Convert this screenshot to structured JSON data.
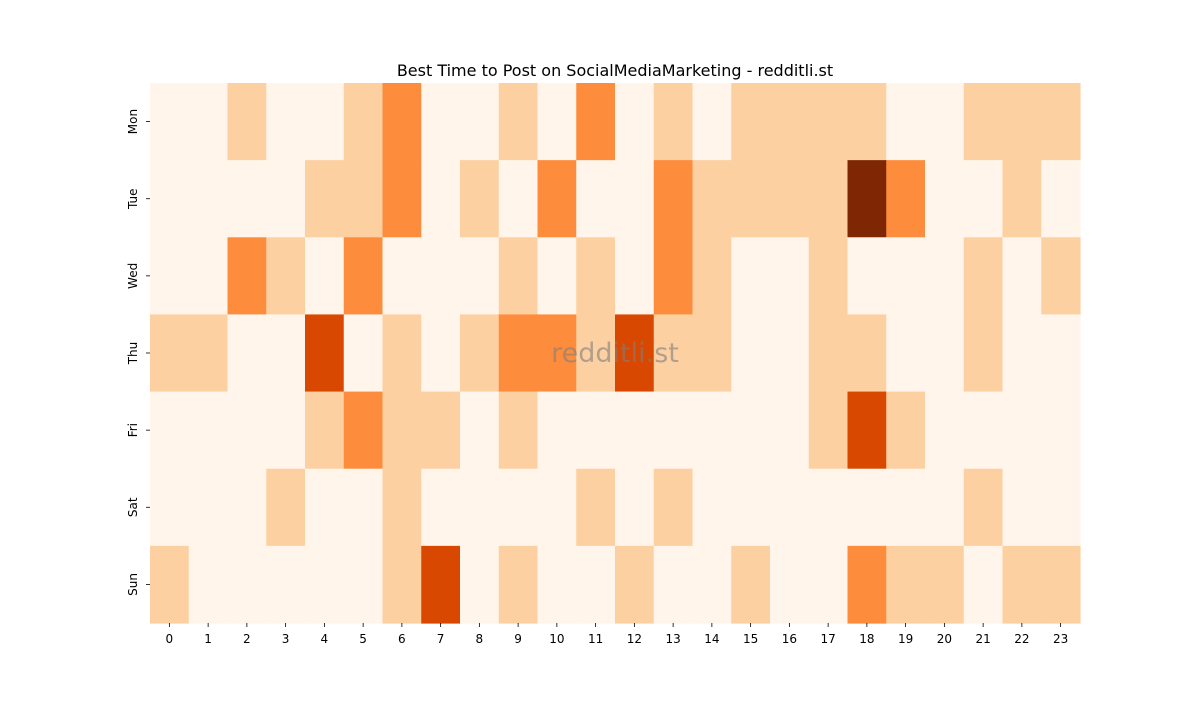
{
  "chart_data": {
    "type": "heatmap",
    "title": "Best Time to Post on SocialMediaMarketing - redditli.st",
    "xlabel": "",
    "ylabel": "",
    "x_categories": [
      "0",
      "1",
      "2",
      "3",
      "4",
      "5",
      "6",
      "7",
      "8",
      "9",
      "10",
      "11",
      "12",
      "13",
      "14",
      "15",
      "16",
      "17",
      "18",
      "19",
      "20",
      "21",
      "22",
      "23"
    ],
    "y_categories": [
      "Mon",
      "Tue",
      "Wed",
      "Thu",
      "Fri",
      "Sat",
      "Sun"
    ],
    "values": [
      [
        0,
        0,
        1,
        0,
        0,
        1,
        2,
        0,
        0,
        1,
        0,
        2,
        0,
        1,
        0,
        1,
        1,
        1,
        1,
        0,
        0,
        1,
        1,
        1
      ],
      [
        0,
        0,
        0,
        0,
        1,
        1,
        2,
        0,
        1,
        0,
        2,
        0,
        0,
        2,
        1,
        1,
        1,
        1,
        4,
        2,
        0,
        0,
        1,
        0
      ],
      [
        0,
        0,
        2,
        1,
        0,
        2,
        0,
        0,
        0,
        1,
        0,
        1,
        0,
        2,
        1,
        0,
        0,
        1,
        0,
        0,
        0,
        1,
        0,
        1
      ],
      [
        1,
        1,
        0,
        0,
        3,
        0,
        1,
        0,
        1,
        2,
        2,
        1,
        3,
        1,
        1,
        0,
        0,
        1,
        1,
        0,
        0,
        1,
        0,
        0
      ],
      [
        0,
        0,
        0,
        0,
        1,
        2,
        1,
        1,
        0,
        1,
        0,
        0,
        0,
        0,
        0,
        0,
        0,
        1,
        3,
        1,
        0,
        0,
        0,
        0
      ],
      [
        0,
        0,
        0,
        1,
        0,
        0,
        1,
        0,
        0,
        0,
        0,
        1,
        0,
        1,
        0,
        0,
        0,
        0,
        0,
        0,
        0,
        1,
        0,
        0
      ],
      [
        1,
        0,
        0,
        0,
        0,
        0,
        1,
        3,
        0,
        1,
        0,
        0,
        1,
        0,
        0,
        1,
        0,
        0,
        2,
        1,
        1,
        0,
        1,
        1
      ]
    ],
    "color_levels": [
      "#fff5eb",
      "#fdd0a2",
      "#fd8d3c",
      "#d94801",
      "#7f2704"
    ],
    "colormap": "Oranges",
    "watermark": "redditli.st",
    "grid": false,
    "legend": "none"
  }
}
